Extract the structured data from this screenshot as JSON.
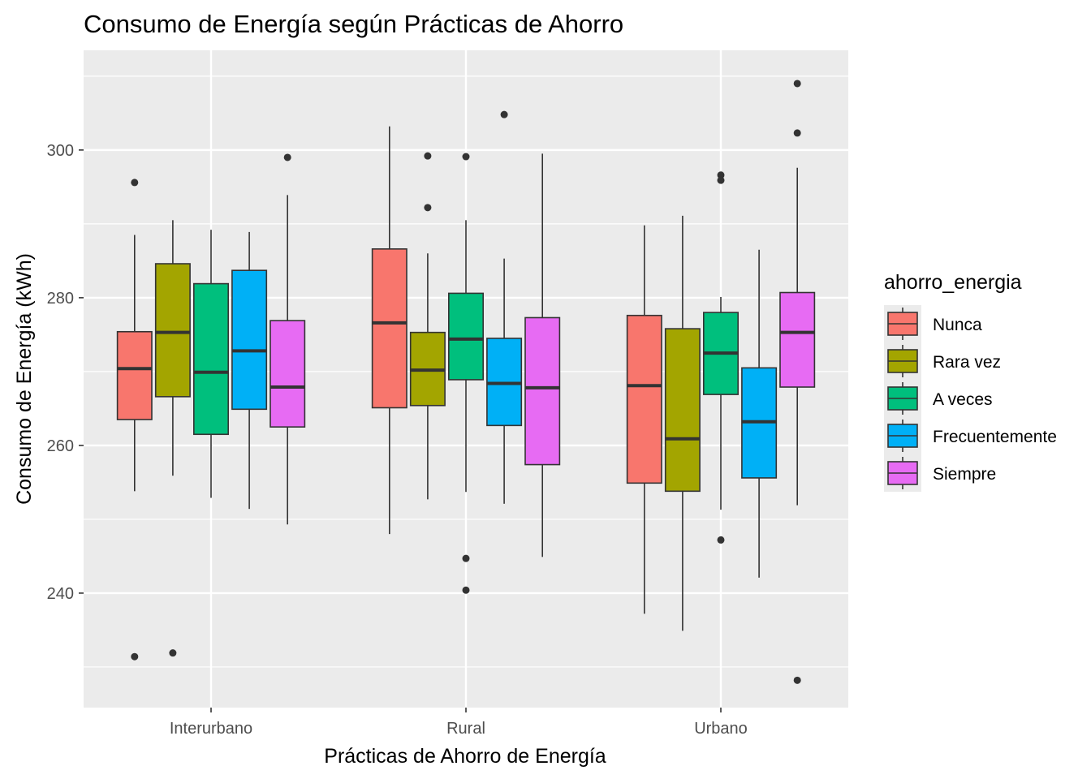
{
  "chart_data": {
    "type": "boxplot",
    "title": "Consumo de Energía según Prácticas de Ahorro",
    "xlabel": "Prácticas de Ahorro de Energía",
    "ylabel": "Consumo de Energía (kWh)",
    "ylim": [
      224.5,
      313.5
    ],
    "yticks": [
      240,
      260,
      280,
      300
    ],
    "categories": [
      "Interurbano",
      "Rural",
      "Urbano"
    ],
    "grid": true,
    "legend": {
      "title": "ahorro_energia",
      "position": "right"
    },
    "series": [
      {
        "name": "Nunca",
        "color": "#F8766D",
        "boxes": [
          {
            "q1": 263.5,
            "median": 270.4,
            "q3": 275.4,
            "whisker_low": 253.8,
            "whisker_high": 288.5,
            "outliers": [
              295.6,
              231.4
            ]
          },
          {
            "q1": 265.1,
            "median": 276.6,
            "q3": 286.6,
            "whisker_low": 248.0,
            "whisker_high": 303.2,
            "outliers": []
          },
          {
            "q1": 254.9,
            "median": 268.1,
            "q3": 277.6,
            "whisker_low": 237.2,
            "whisker_high": 289.8,
            "outliers": []
          }
        ]
      },
      {
        "name": "Rara vez",
        "color": "#A3A500",
        "boxes": [
          {
            "q1": 266.6,
            "median": 275.3,
            "q3": 284.6,
            "whisker_low": 255.9,
            "whisker_high": 290.5,
            "outliers": [
              231.9
            ]
          },
          {
            "q1": 265.4,
            "median": 270.2,
            "q3": 275.3,
            "whisker_low": 252.7,
            "whisker_high": 286.0,
            "outliers": [
              299.2,
              292.2
            ]
          },
          {
            "q1": 253.8,
            "median": 260.9,
            "q3": 275.8,
            "whisker_low": 234.9,
            "whisker_high": 291.1,
            "outliers": []
          }
        ]
      },
      {
        "name": "A veces",
        "color": "#00BF7D",
        "boxes": [
          {
            "q1": 261.5,
            "median": 269.9,
            "q3": 281.9,
            "whisker_low": 252.9,
            "whisker_high": 289.2,
            "outliers": []
          },
          {
            "q1": 268.9,
            "median": 274.4,
            "q3": 280.6,
            "whisker_low": 253.7,
            "whisker_high": 290.5,
            "outliers": [
              299.1,
              244.7,
              240.4
            ]
          },
          {
            "q1": 266.9,
            "median": 272.5,
            "q3": 278.0,
            "whisker_low": 251.3,
            "whisker_high": 280.1,
            "outliers": [
              296.6,
              295.9,
              247.2
            ]
          }
        ]
      },
      {
        "name": "Frecuentemente",
        "color": "#00B0F6",
        "boxes": [
          {
            "q1": 264.9,
            "median": 272.8,
            "q3": 283.7,
            "whisker_low": 251.4,
            "whisker_high": 288.9,
            "outliers": []
          },
          {
            "q1": 262.7,
            "median": 268.4,
            "q3": 274.5,
            "whisker_low": 252.1,
            "whisker_high": 285.3,
            "outliers": [
              304.8
            ]
          },
          {
            "q1": 255.6,
            "median": 263.2,
            "q3": 270.5,
            "whisker_low": 242.1,
            "whisker_high": 286.5,
            "outliers": []
          }
        ]
      },
      {
        "name": "Siempre",
        "color": "#E76BF3",
        "boxes": [
          {
            "q1": 262.5,
            "median": 267.9,
            "q3": 276.9,
            "whisker_low": 249.3,
            "whisker_high": 293.9,
            "outliers": [
              299.0
            ]
          },
          {
            "q1": 257.4,
            "median": 267.8,
            "q3": 277.3,
            "whisker_low": 244.9,
            "whisker_high": 299.5,
            "outliers": []
          },
          {
            "q1": 267.9,
            "median": 275.3,
            "q3": 280.7,
            "whisker_low": 251.9,
            "whisker_high": 297.6,
            "outliers": [
              309.0,
              302.3,
              228.2
            ]
          }
        ]
      }
    ]
  }
}
